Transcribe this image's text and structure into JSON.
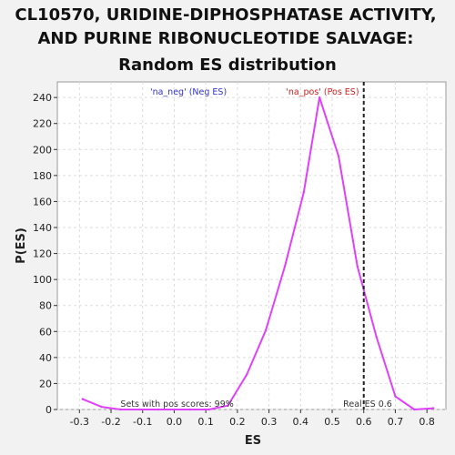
{
  "chart_data": {
    "type": "line",
    "title_lines": [
      "CL10570, URIDINE-DIPHOSPHATASE ACTIVITY,",
      "AND PURINE RIBONUCLEOTIDE SALVAGE:",
      "Random ES distribution"
    ],
    "xlabel": "ES",
    "ylabel": "P(ES)",
    "xlim": [
      -0.37,
      0.86
    ],
    "ylim": [
      0,
      252
    ],
    "x_ticks": [
      -0.3,
      -0.2,
      -0.1,
      0.0,
      0.1,
      0.2,
      0.3,
      0.4,
      0.5,
      0.6,
      0.7,
      0.8
    ],
    "x_tick_labels": [
      "-0.3",
      "-0.2",
      "-0.1",
      "0.0",
      "0.1",
      "0.2",
      "0.3",
      "0.4",
      "0.5",
      "0.6",
      "0.7",
      "0.8"
    ],
    "y_ticks": [
      0,
      20,
      40,
      60,
      80,
      100,
      120,
      140,
      160,
      180,
      200,
      220,
      240
    ],
    "y_tick_labels": [
      "0",
      "20",
      "40",
      "60",
      "80",
      "100",
      "120",
      "140",
      "160",
      "180",
      "200",
      "220",
      "240"
    ],
    "grid": true,
    "series": [
      {
        "color": "#e040fb",
        "x": [
          -0.29,
          -0.23,
          -0.17,
          -0.11,
          -0.05,
          0.0,
          0.05,
          0.11,
          0.17,
          0.23,
          0.29,
          0.35,
          0.41,
          0.46,
          0.52,
          0.58,
          0.64,
          0.7,
          0.76,
          0.82
        ],
        "y": [
          8,
          2,
          0,
          0,
          0,
          0,
          0,
          0,
          3,
          27,
          61,
          110,
          167,
          240,
          195,
          110,
          56,
          10,
          0,
          1
        ]
      }
    ],
    "vline": {
      "x": 0.6,
      "color": "#222222",
      "style": "dashed"
    },
    "annotations": {
      "neg": {
        "text": "'na_neg' (Neg ES)",
        "color": "#3333cc"
      },
      "pos": {
        "text": "'na_pos' (Pos ES)",
        "color": "#cc2222"
      },
      "sets_pos": {
        "text": "Sets with pos scores: 99%",
        "color": "#333333"
      },
      "real_es": {
        "text": "Real ES 0.6",
        "color": "#333333"
      }
    }
  }
}
